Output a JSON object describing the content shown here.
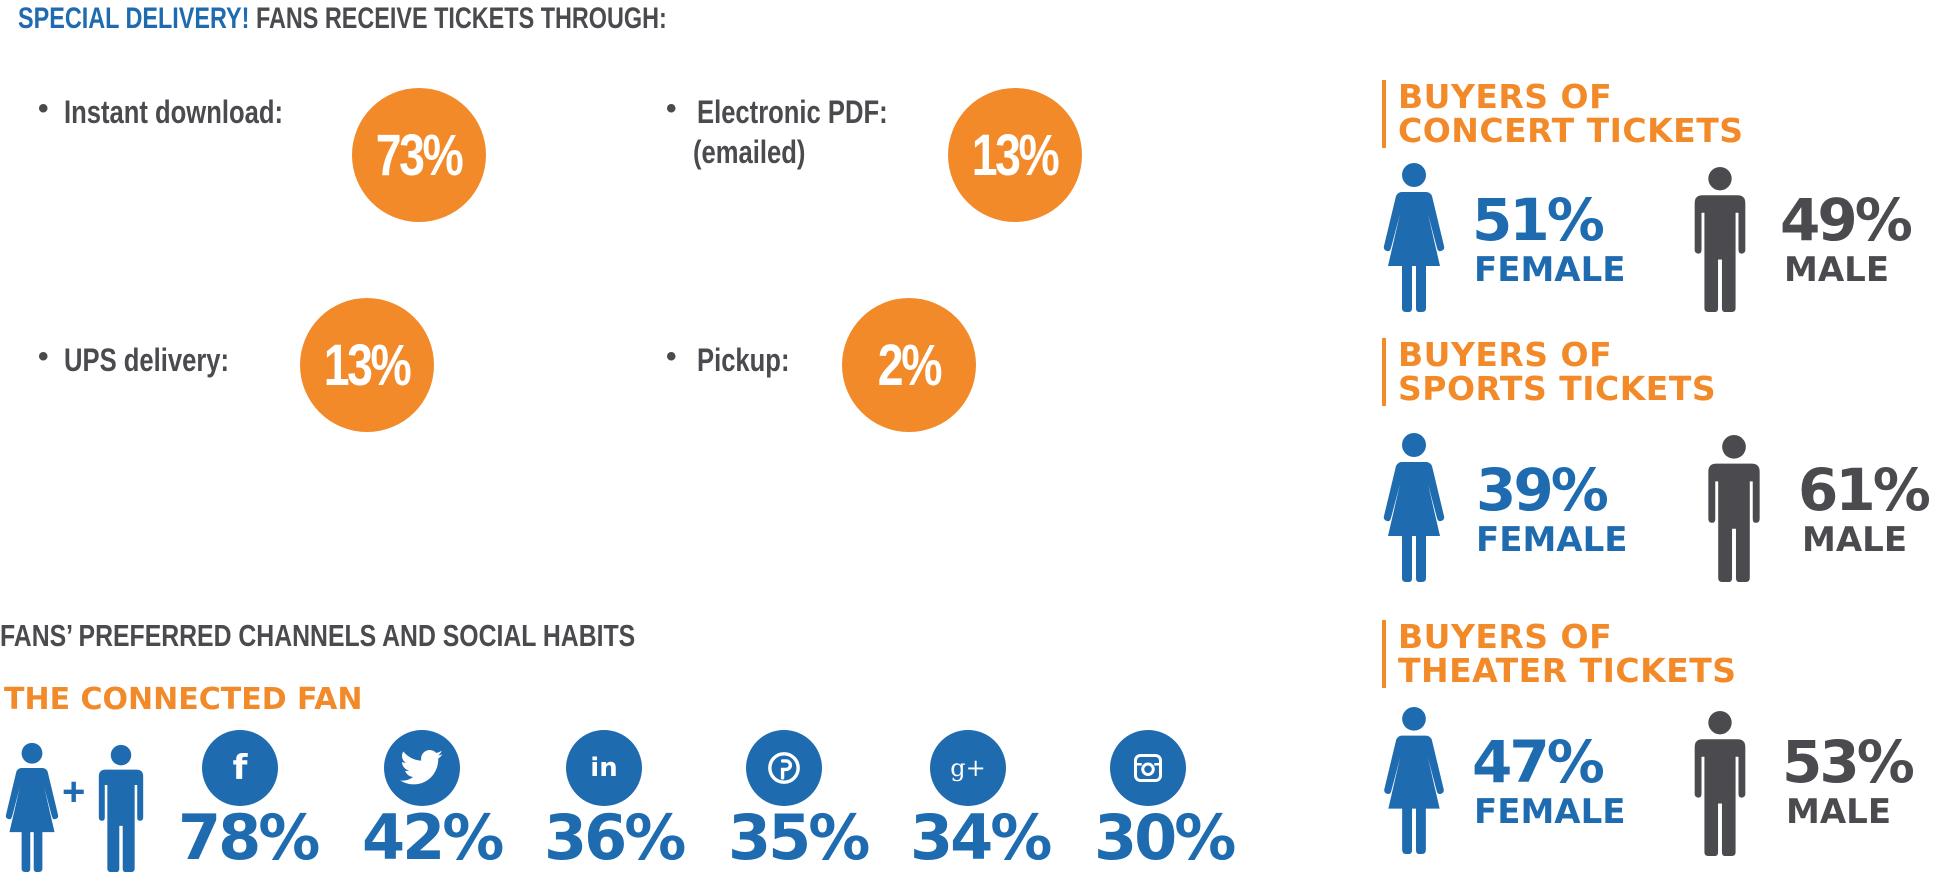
{
  "header": {
    "title_highlight": "SPECIAL DELIVERY!",
    "title_rest": "FANS RECEIVE TICKETS THROUGH:"
  },
  "delivery": {
    "bullet": "•",
    "items": [
      {
        "label": "Instant download:",
        "sublabel": "",
        "value": "73%",
        "percent": 73
      },
      {
        "label": "Electronic PDF:",
        "sublabel": "(emailed)",
        "value": "13%",
        "percent": 13
      },
      {
        "label": "UPS delivery:",
        "sublabel": "",
        "value": "13%",
        "percent": 13
      },
      {
        "label": "Pickup:",
        "sublabel": "",
        "value": "2%",
        "percent": 2
      }
    ]
  },
  "buyers": [
    {
      "title_line1": "BUYERS OF",
      "title_line2": "CONCERT TICKETS",
      "female_value": "51%",
      "female_label": "FEMALE",
      "male_value": "49%",
      "male_label": "MALE"
    },
    {
      "title_line1": "BUYERS OF",
      "title_line2": "SPORTS TICKETS",
      "female_value": "39%",
      "female_label": "FEMALE",
      "male_value": "61%",
      "male_label": "MALE"
    },
    {
      "title_line1": "BUYERS OF",
      "title_line2": "THEATER TICKETS",
      "female_value": "47%",
      "female_label": "FEMALE",
      "male_value": "53%",
      "male_label": "MALE"
    }
  ],
  "social": {
    "heading": "FANS’ PREFERRED CHANNELS AND SOCIAL HABITS",
    "subheading": "THE CONNECTED FAN",
    "plus": "+",
    "channels": [
      {
        "icon": "facebook-icon",
        "glyph": "f",
        "value": "78%"
      },
      {
        "icon": "twitter-icon",
        "glyph": "",
        "value": "42%"
      },
      {
        "icon": "linkedin-icon",
        "glyph": "in",
        "value": "36%"
      },
      {
        "icon": "pinterest-icon",
        "glyph": "",
        "value": "35%"
      },
      {
        "icon": "google-plus-icon",
        "glyph": "g+",
        "value": "34%"
      },
      {
        "icon": "instagram-icon",
        "glyph": "",
        "value": "30%"
      }
    ]
  },
  "colors": {
    "orange": "#f28a2a",
    "blue": "#1f6bb0",
    "dark": "#4a4a4f"
  }
}
